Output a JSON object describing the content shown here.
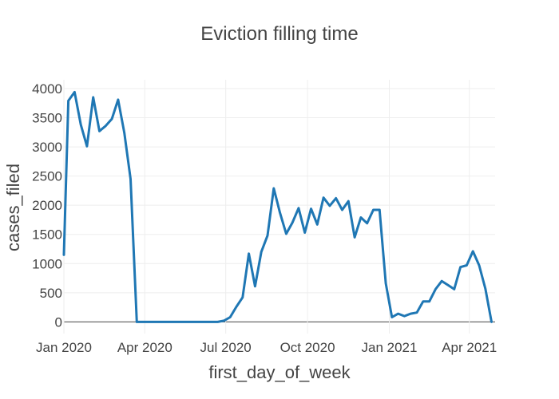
{
  "chart_data": {
    "type": "line",
    "title": "Eviction filling time",
    "xlabel": "first_day_of_week",
    "ylabel": "cases_filed",
    "xlim": [
      "2020-01-01",
      "2021-04-30"
    ],
    "ylim": [
      -200,
      4150
    ],
    "grid": true,
    "color": "#1f77b4",
    "x_ticks": [
      {
        "date": "2020-01-01",
        "label": "Jan 2020"
      },
      {
        "date": "2020-04-01",
        "label": "Apr 2020"
      },
      {
        "date": "2020-07-01",
        "label": "Jul 2020"
      },
      {
        "date": "2020-10-01",
        "label": "Oct 2020"
      },
      {
        "date": "2021-01-01",
        "label": "Jan 2021"
      },
      {
        "date": "2021-04-01",
        "label": "Apr 2021"
      }
    ],
    "y_ticks": [
      0,
      500,
      1000,
      1500,
      2000,
      2500,
      3000,
      3500,
      4000
    ],
    "series": [
      {
        "x": [
          "2020-01-01",
          "2020-01-06",
          "2020-01-13",
          "2020-01-20",
          "2020-01-27",
          "2020-02-03",
          "2020-02-10",
          "2020-02-17",
          "2020-02-24",
          "2020-03-02",
          "2020-03-09",
          "2020-03-16",
          "2020-03-23",
          "2020-03-30",
          "2020-04-06",
          "2020-04-13",
          "2020-04-20",
          "2020-04-27",
          "2020-05-04",
          "2020-05-11",
          "2020-05-18",
          "2020-05-25",
          "2020-06-01",
          "2020-06-08",
          "2020-06-15",
          "2020-06-22",
          "2020-06-29",
          "2020-07-06",
          "2020-07-13",
          "2020-07-20",
          "2020-07-27",
          "2020-08-03",
          "2020-08-10",
          "2020-08-17",
          "2020-08-24",
          "2020-08-31",
          "2020-09-07",
          "2020-09-14",
          "2020-09-21",
          "2020-09-28",
          "2020-10-05",
          "2020-10-12",
          "2020-10-19",
          "2020-10-26",
          "2020-11-02",
          "2020-11-09",
          "2020-11-16",
          "2020-11-23",
          "2020-11-30",
          "2020-12-07",
          "2020-12-14",
          "2020-12-21",
          "2020-12-28",
          "2021-01-04",
          "2021-01-11",
          "2021-01-18",
          "2021-01-25",
          "2021-02-01",
          "2021-02-08",
          "2021-02-15",
          "2021-02-22",
          "2021-03-01",
          "2021-03-08",
          "2021-03-15",
          "2021-03-22",
          "2021-03-29",
          "2021-04-05",
          "2021-04-12",
          "2021-04-19",
          "2021-04-26"
        ],
        "y": [
          1150,
          3790,
          3940,
          3380,
          3010,
          3850,
          3270,
          3360,
          3480,
          3810,
          3240,
          2450,
          0,
          0,
          0,
          0,
          0,
          0,
          0,
          0,
          0,
          0,
          0,
          0,
          0,
          0,
          20,
          80,
          260,
          420,
          1170,
          610,
          1200,
          1480,
          2290,
          1870,
          1510,
          1700,
          1950,
          1530,
          1940,
          1670,
          2130,
          1990,
          2120,
          1920,
          2070,
          1450,
          1790,
          1690,
          1920,
          1920,
          660,
          80,
          140,
          100,
          140,
          160,
          350,
          350,
          560,
          700,
          630,
          560,
          940,
          970,
          1210,
          970,
          570,
          0
        ]
      }
    ]
  }
}
